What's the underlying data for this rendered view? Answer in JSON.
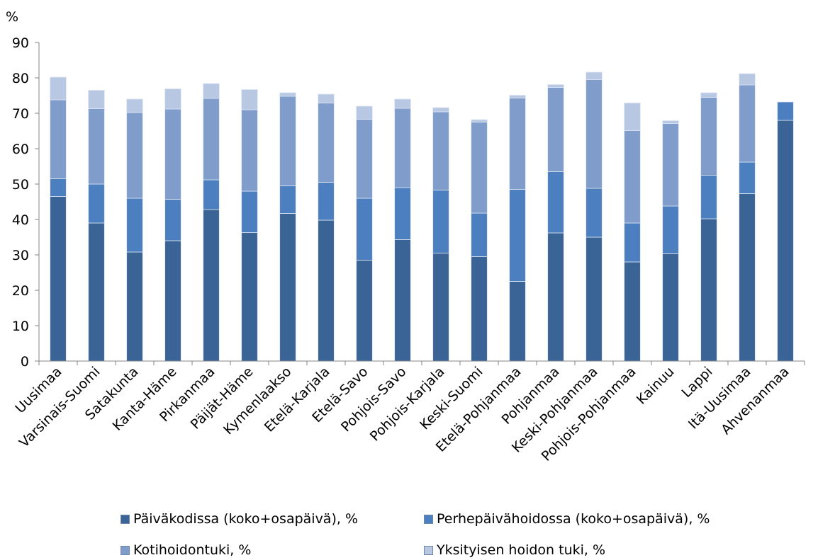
{
  "chart_data": {
    "type": "bar",
    "stacked": true,
    "title": "",
    "xlabel": "",
    "ylabel": "%",
    "ylim": [
      0,
      90
    ],
    "yticks": [
      0,
      10,
      20,
      30,
      40,
      50,
      60,
      70,
      80,
      90
    ],
    "grid": false,
    "legend_position": "bottom",
    "categories": [
      "Uusimaa",
      "Varsinais-Suomi",
      "Satakunta",
      "Kanta-Häme",
      "Pirkanmaa",
      "Päijät-Häme",
      "Kymenlaakso",
      "Etelä-Karjala",
      "Etelä-Savo",
      "Pohjois-Savo",
      "Pohjois-Karjala",
      "Keski-Suomi",
      "Etelä-Pohjanmaa",
      "Pohjanmaa",
      "Keski-Pohjanmaa",
      "Pohjois-Pohjanmaa",
      "Kainuu",
      "Lappi",
      "Itä-Uusimaa",
      "Ahvenanmaa"
    ],
    "series": [
      {
        "name": "Päiväkodissa (koko+osapäivä), %",
        "color": "#3a6396",
        "values": [
          46.5,
          39.0,
          30.8,
          34.0,
          42.8,
          36.3,
          41.7,
          39.8,
          28.5,
          34.3,
          30.5,
          29.5,
          22.5,
          36.2,
          35.0,
          28.0,
          30.3,
          40.2,
          47.3,
          68.0
        ]
      },
      {
        "name": "Perhepäivähoidossa (koko+osapäivä), %",
        "color": "#4c7fbf",
        "values": [
          5.0,
          11.0,
          15.2,
          11.7,
          8.4,
          11.7,
          7.8,
          10.7,
          17.5,
          14.7,
          17.8,
          12.3,
          26.0,
          17.3,
          13.8,
          11.0,
          13.5,
          12.3,
          8.9,
          5.2
        ]
      },
      {
        "name": "Kotihoidontuki, %",
        "color": "#7f9ccb",
        "values": [
          22.3,
          21.3,
          24.2,
          25.5,
          23.0,
          23.0,
          25.3,
          22.4,
          22.3,
          22.4,
          22.1,
          25.7,
          25.8,
          23.8,
          30.7,
          26.1,
          23.3,
          22.0,
          21.8,
          0
        ]
      },
      {
        "name": "Yksityisen hoidon tuki, %",
        "color": "#b8c8e3",
        "values": [
          6.4,
          5.2,
          3.8,
          5.7,
          4.2,
          5.7,
          1.0,
          2.5,
          3.7,
          2.6,
          1.2,
          0.7,
          0.8,
          0.8,
          2.1,
          7.8,
          0.8,
          1.3,
          3.2,
          0
        ]
      }
    ]
  }
}
